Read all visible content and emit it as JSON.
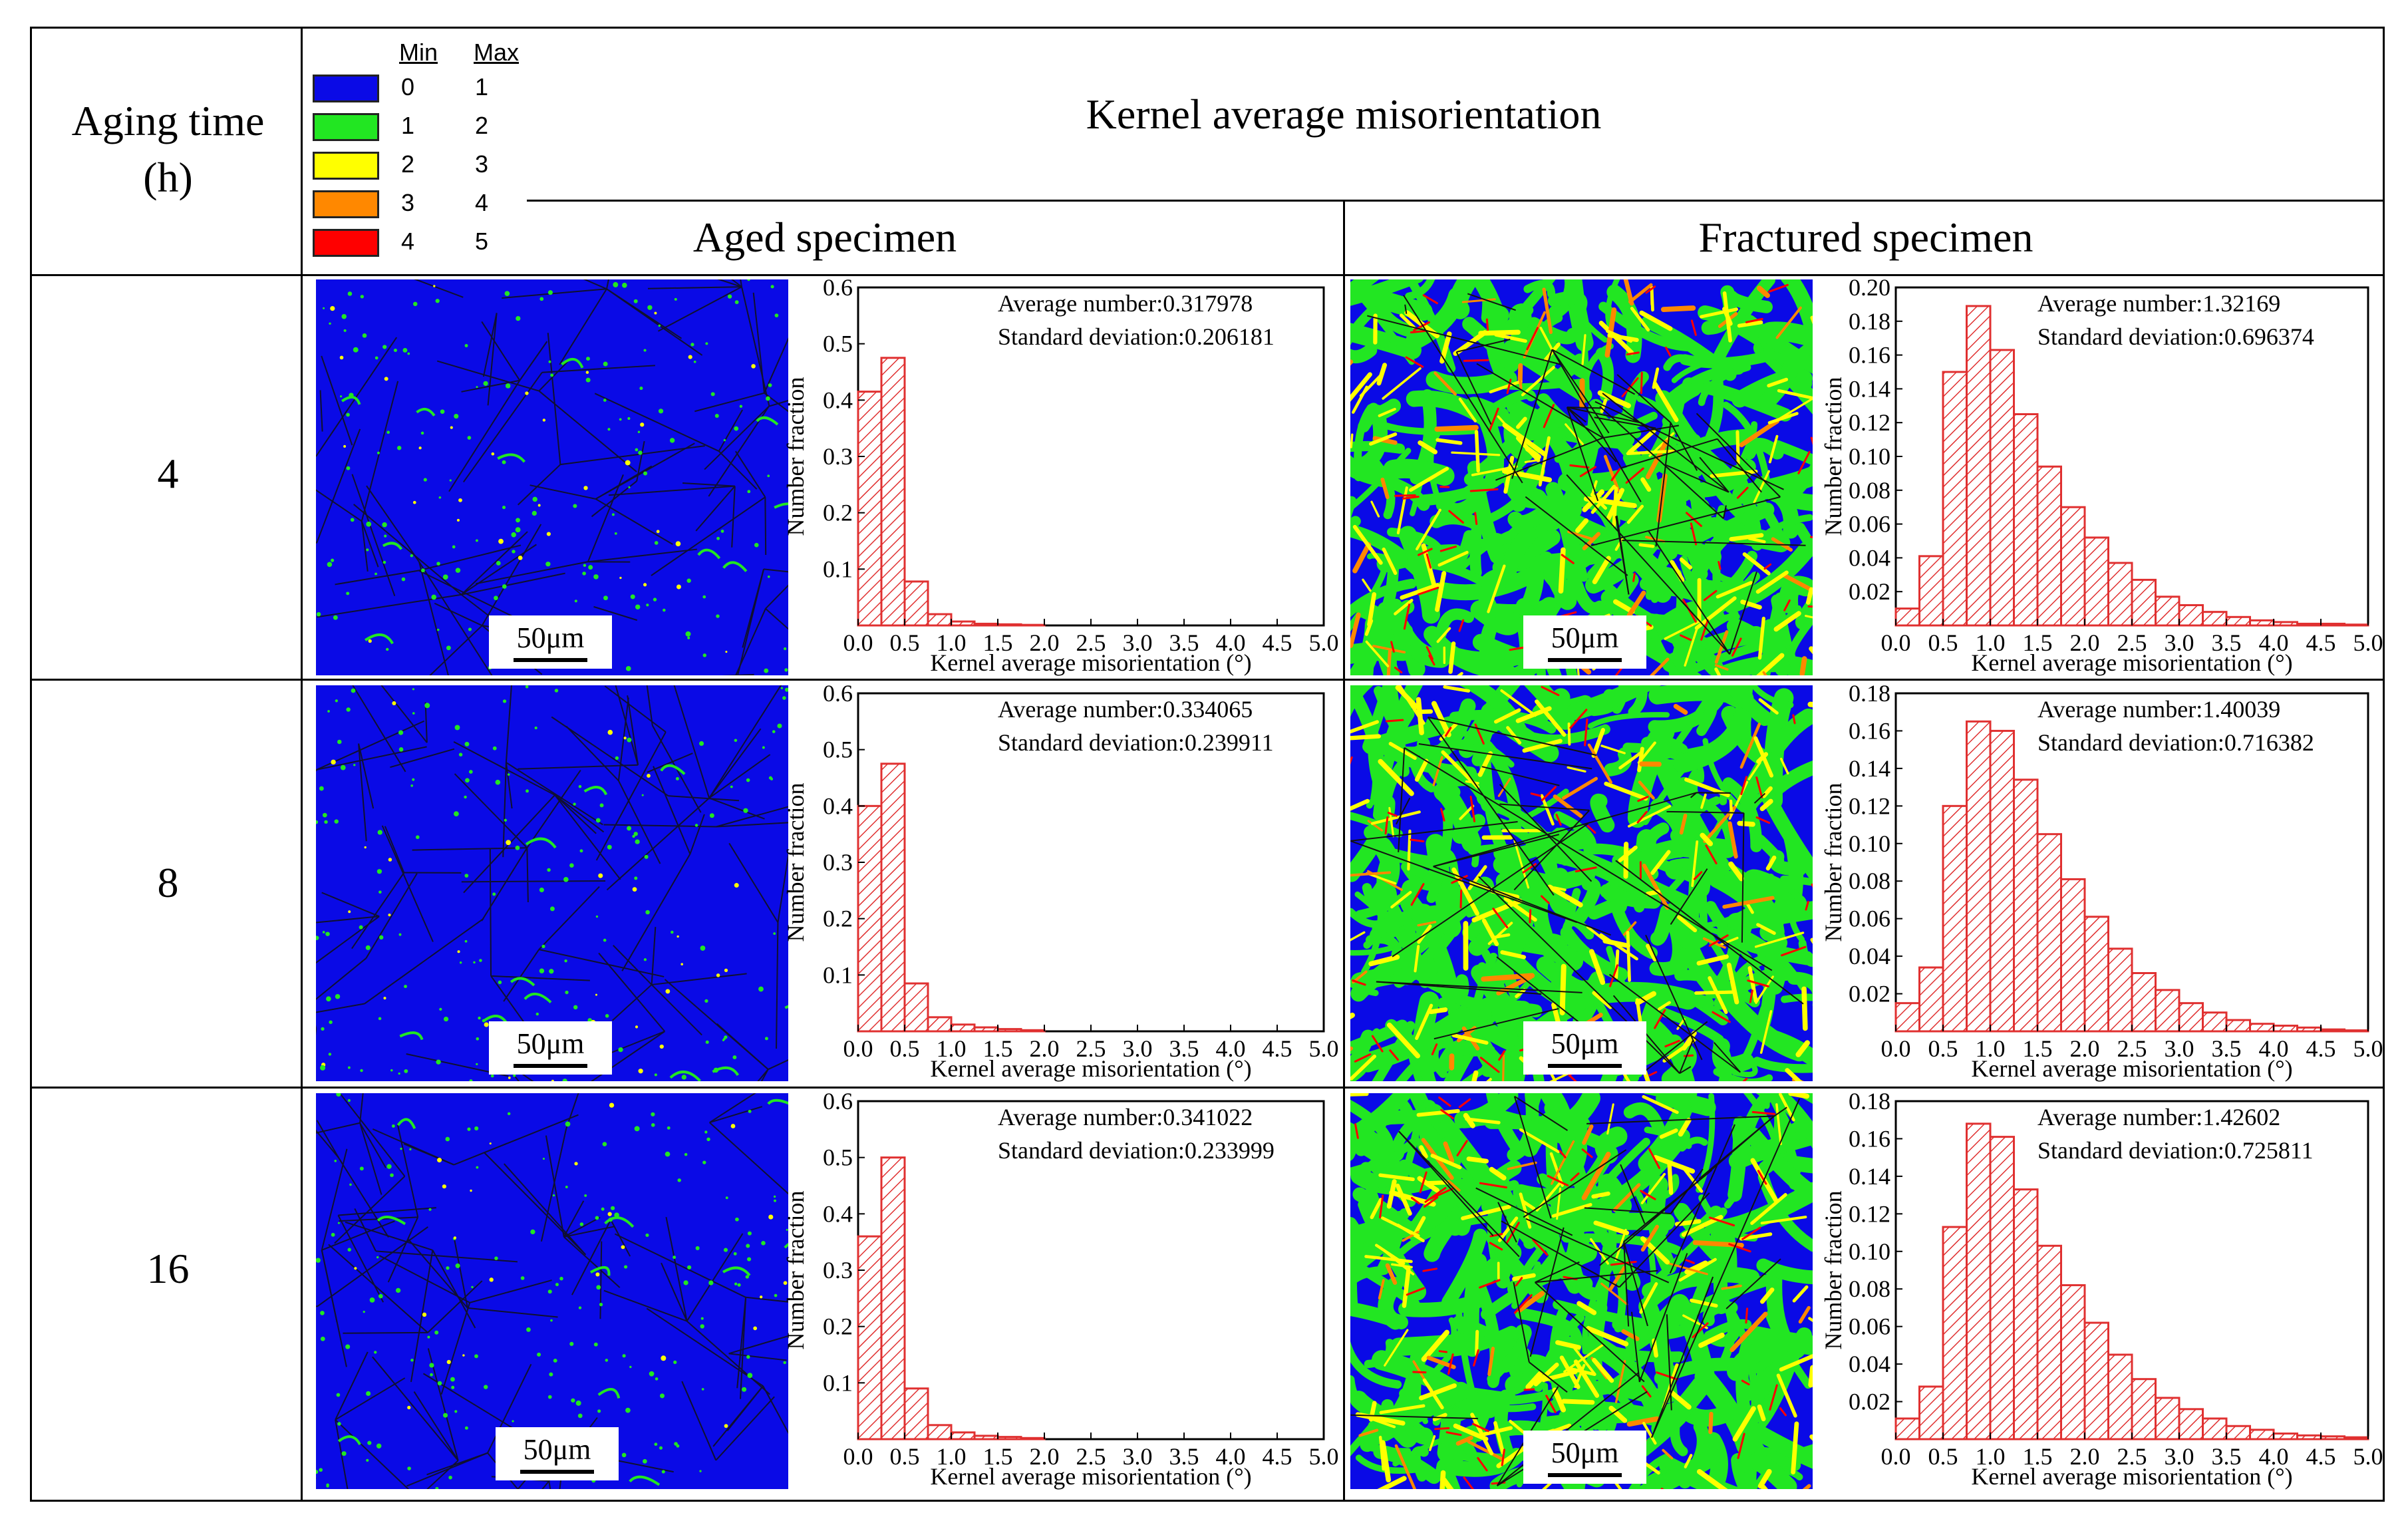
{
  "table": {
    "aging_time_header": "Aging  time",
    "aging_time_unit": "(h)",
    "kam_title": "Kernel average misorientation",
    "aged_header": "Aged specimen",
    "fractured_header": "Fractured specimen"
  },
  "legend": {
    "min_label": "Min",
    "max_label": "Max",
    "entries": [
      {
        "color": "#0a0ae6",
        "min": "0",
        "max": "1"
      },
      {
        "color": "#22e622",
        "min": "1",
        "max": "2"
      },
      {
        "color": "#ffff00",
        "min": "2",
        "max": "3"
      },
      {
        "color": "#ff8800",
        "min": "3",
        "max": "4"
      },
      {
        "color": "#ff0000",
        "min": "4",
        "max": "5"
      }
    ]
  },
  "rows": [
    {
      "aging_time": "4",
      "aged": {
        "scale": "50μm",
        "stat1": "Average number:0.317978",
        "stat2": "Standard deviation:0.206181"
      },
      "fractured": {
        "scale": "50μm",
        "stat1": "Average number:1.32169",
        "stat2": "Standard deviation:0.696374"
      }
    },
    {
      "aging_time": "8",
      "aged": {
        "scale": "50μm",
        "stat1": "Average number:0.334065",
        "stat2": "Standard deviation:0.239911"
      },
      "fractured": {
        "scale": "50μm",
        "stat1": "Average number:1.40039",
        "stat2": "Standard deviation:0.716382"
      }
    },
    {
      "aging_time": "16",
      "aged": {
        "scale": "50μm",
        "stat1": "Average number:0.341022",
        "stat2": "Standard deviation:0.233999"
      },
      "fractured": {
        "scale": "50μm",
        "stat1": "Average number:1.42602",
        "stat2": "Standard deviation:0.725811"
      }
    }
  ],
  "chart_data": [
    {
      "id": "aged_4h",
      "type": "bar",
      "xlabel": "Kernel average misorientation (°)",
      "ylabel": "Number fraction",
      "xlim": [
        0,
        5
      ],
      "ylim": [
        0,
        0.6
      ],
      "xticks": [
        "0.0",
        "0.5",
        "1.0",
        "1.5",
        "2.0",
        "2.5",
        "3.0",
        "3.5",
        "4.0",
        "4.5",
        "5.0"
      ],
      "yticks": [
        "0.1",
        "0.2",
        "0.3",
        "0.4",
        "0.5",
        "0.6"
      ],
      "bin_width": 0.25,
      "values": [
        0.415,
        0.475,
        0.078,
        0.02,
        0.007,
        0.003,
        0.002,
        0.001,
        0,
        0,
        0,
        0,
        0,
        0,
        0,
        0,
        0,
        0,
        0,
        0
      ]
    },
    {
      "id": "fractured_4h",
      "type": "bar",
      "xlabel": "Kernel average misorientation (°)",
      "ylabel": "Number fraction",
      "xlim": [
        0,
        5
      ],
      "ylim": [
        0,
        0.2
      ],
      "xticks": [
        "0.0",
        "0.5",
        "1.0",
        "1.5",
        "2.0",
        "2.5",
        "3.0",
        "3.5",
        "4.0",
        "4.5",
        "5.0"
      ],
      "yticks": [
        "0.02",
        "0.04",
        "0.06",
        "0.08",
        "0.10",
        "0.12",
        "0.14",
        "0.16",
        "0.18",
        "0.20"
      ],
      "bin_width": 0.25,
      "values": [
        0.01,
        0.041,
        0.15,
        0.189,
        0.163,
        0.125,
        0.094,
        0.07,
        0.052,
        0.037,
        0.027,
        0.017,
        0.012,
        0.008,
        0.005,
        0.003,
        0.002,
        0.001,
        0.001,
        0.0005
      ]
    },
    {
      "id": "aged_8h",
      "type": "bar",
      "xlabel": "Kernel average misorientation (°)",
      "ylabel": "Number fraction",
      "xlim": [
        0,
        5
      ],
      "ylim": [
        0,
        0.6
      ],
      "xticks": [
        "0.0",
        "0.5",
        "1.0",
        "1.5",
        "2.0",
        "2.5",
        "3.0",
        "3.5",
        "4.0",
        "4.5",
        "5.0"
      ],
      "yticks": [
        "0.1",
        "0.2",
        "0.3",
        "0.4",
        "0.5",
        "0.6"
      ],
      "bin_width": 0.25,
      "values": [
        0.4,
        0.475,
        0.085,
        0.025,
        0.012,
        0.007,
        0.004,
        0.002,
        0,
        0,
        0,
        0,
        0,
        0,
        0,
        0,
        0,
        0,
        0,
        0
      ]
    },
    {
      "id": "fractured_8h",
      "type": "bar",
      "xlabel": "Kernel average misorientation (°)",
      "ylabel": "Number fraction",
      "xlim": [
        0,
        5
      ],
      "ylim": [
        0,
        0.18
      ],
      "xticks": [
        "0.0",
        "0.5",
        "1.0",
        "1.5",
        "2.0",
        "2.5",
        "3.0",
        "3.5",
        "4.0",
        "4.5",
        "5.0"
      ],
      "yticks": [
        "0.02",
        "0.04",
        "0.06",
        "0.08",
        "0.10",
        "0.12",
        "0.14",
        "0.16",
        "0.18"
      ],
      "bin_width": 0.25,
      "values": [
        0.015,
        0.034,
        0.12,
        0.165,
        0.16,
        0.134,
        0.105,
        0.081,
        0.061,
        0.044,
        0.031,
        0.022,
        0.015,
        0.01,
        0.006,
        0.004,
        0.003,
        0.002,
        0.001,
        0.0005
      ]
    },
    {
      "id": "aged_16h",
      "type": "bar",
      "xlabel": "Kernel average misorientation (°)",
      "ylabel": "Number fraction",
      "xlim": [
        0,
        5
      ],
      "ylim": [
        0,
        0.6
      ],
      "xticks": [
        "0.0",
        "0.5",
        "1.0",
        "1.5",
        "2.0",
        "2.5",
        "3.0",
        "3.5",
        "4.0",
        "4.5",
        "5.0"
      ],
      "yticks": [
        "0.1",
        "0.2",
        "0.3",
        "0.4",
        "0.5",
        "0.6"
      ],
      "bin_width": 0.25,
      "values": [
        0.36,
        0.5,
        0.09,
        0.025,
        0.012,
        0.006,
        0.004,
        0.002,
        0,
        0,
        0,
        0,
        0,
        0,
        0,
        0,
        0,
        0,
        0,
        0
      ]
    },
    {
      "id": "fractured_16h",
      "type": "bar",
      "xlabel": "Kernel average misorientation (°)",
      "ylabel": "Number fraction",
      "xlim": [
        0,
        5
      ],
      "ylim": [
        0,
        0.18
      ],
      "xticks": [
        "0.0",
        "0.5",
        "1.0",
        "1.5",
        "2.0",
        "2.5",
        "3.0",
        "3.5",
        "4.0",
        "4.5",
        "5.0"
      ],
      "yticks": [
        "0.02",
        "0.04",
        "0.06",
        "0.08",
        "0.10",
        "0.12",
        "0.14",
        "0.16",
        "0.18"
      ],
      "bin_width": 0.25,
      "values": [
        0.011,
        0.028,
        0.113,
        0.168,
        0.161,
        0.133,
        0.103,
        0.082,
        0.062,
        0.045,
        0.032,
        0.022,
        0.016,
        0.011,
        0.007,
        0.005,
        0.003,
        0.002,
        0.0015,
        0.001
      ]
    }
  ]
}
